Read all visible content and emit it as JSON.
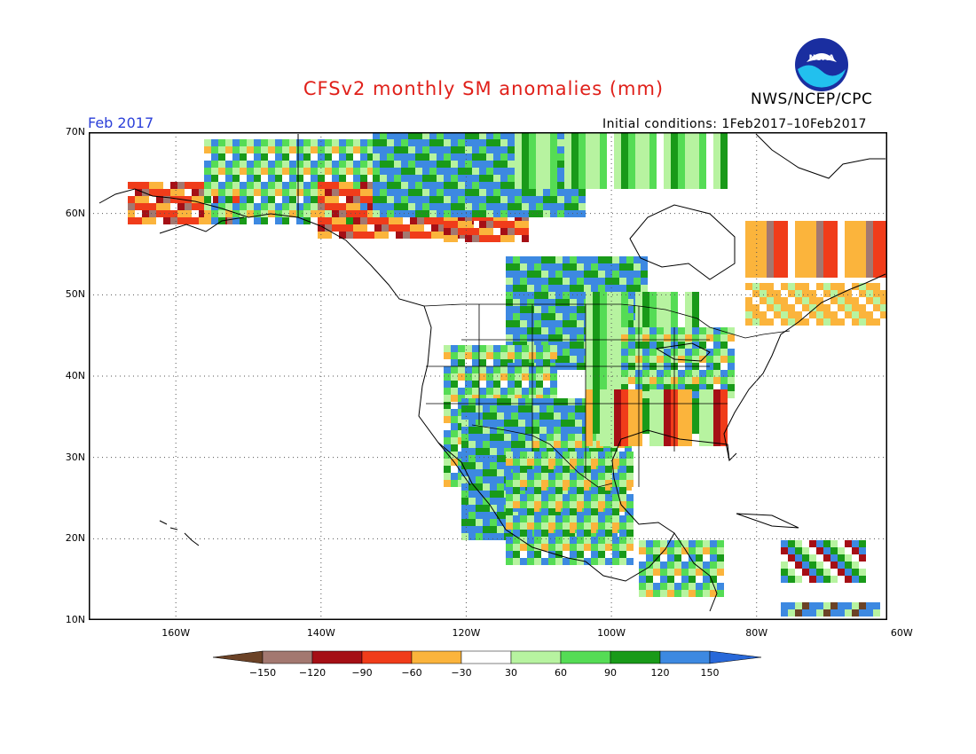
{
  "title": "CFSv2 monthly SM anomalies (mm)",
  "agency": "NWS/NCEP/CPC",
  "logo_text": "NOAA",
  "month_label": "Feb 2017",
  "initial_conditions": "Initial conditions: 1Feb2017–10Feb2017",
  "latitude_labels": [
    "70N",
    "60N",
    "50N",
    "40N",
    "30N",
    "20N",
    "10N"
  ],
  "longitude_labels": [
    "160W",
    "140W",
    "120W",
    "100W",
    "80W",
    "60W"
  ],
  "map_extent": {
    "lon_min": -172,
    "lon_max": -62,
    "lat_min": 10,
    "lat_max": 70
  },
  "colorbar": {
    "labels": [
      "−150",
      "−120",
      "−90",
      "−60",
      "−30",
      "30",
      "60",
      "90",
      "120",
      "150"
    ],
    "colors": [
      "#6b4226",
      "#a37870",
      "#a50f15",
      "#f03c1a",
      "#fbb43c",
      "#ffffff",
      "#b7f3a0",
      "#55dc55",
      "#199a19",
      "#3d89e1",
      "#2868d9"
    ]
  },
  "colors": {
    "title": "#e0201a",
    "month": "#2b3fd9",
    "noaa_blue": "#1a2ea0",
    "noaa_cyan": "#22c0ee"
  }
}
